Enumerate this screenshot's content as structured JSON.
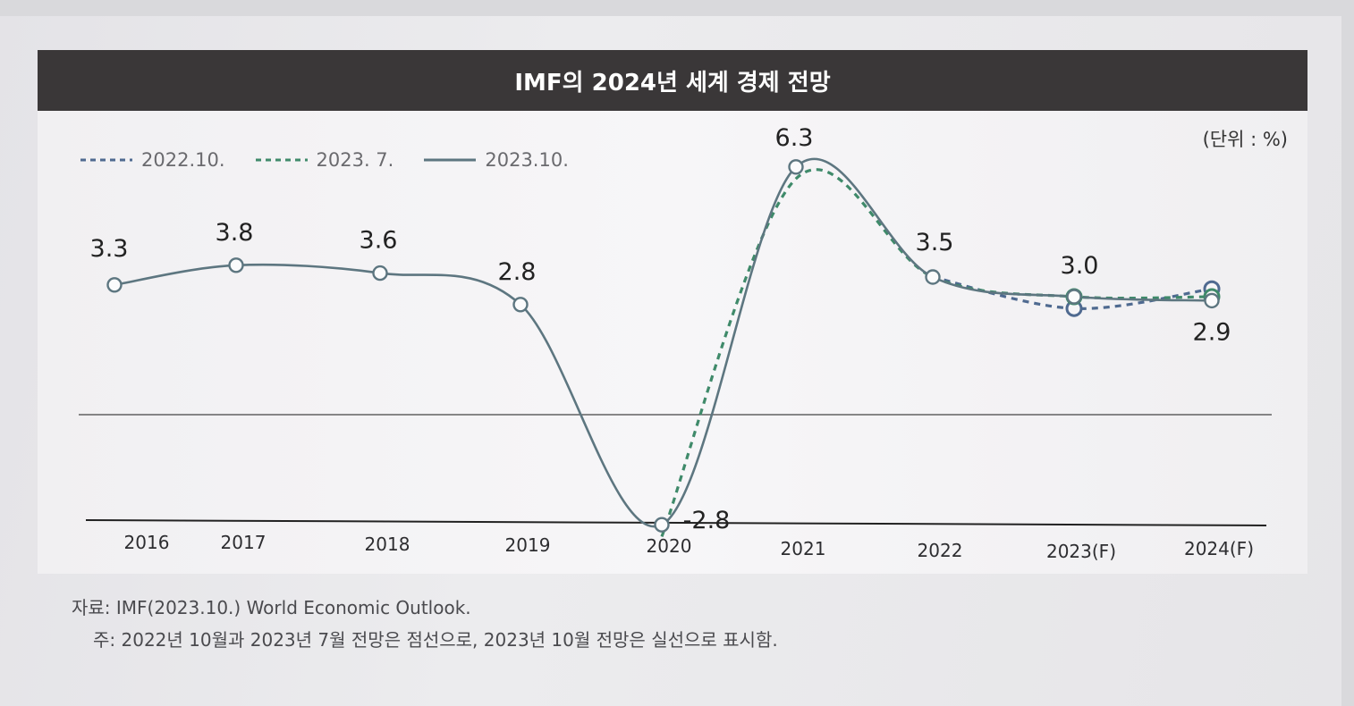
{
  "title": "IMF의 2024년 세계 경제 전망",
  "unit": "(단위 : %)",
  "legend": [
    {
      "label": "2022.10.",
      "color": "#4f6a90",
      "style": "dashed"
    },
    {
      "label": "2023. 7.",
      "color": "#3f8a6a",
      "style": "dashed"
    },
    {
      "label": "2023.10.",
      "color": "#5d7680",
      "style": "solid"
    }
  ],
  "chart_data": {
    "type": "line",
    "categories": [
      "2016",
      "2017",
      "2018",
      "2019",
      "2020",
      "2021",
      "2022",
      "2023(F)",
      "2024(F)"
    ],
    "series": [
      {
        "name": "2023.10.",
        "values": [
          3.3,
          3.8,
          3.6,
          2.8,
          -2.8,
          6.3,
          3.5,
          3.0,
          2.9
        ]
      },
      {
        "name": "2022.10.",
        "values": [
          null,
          null,
          null,
          null,
          null,
          null,
          3.5,
          2.7,
          3.2
        ]
      },
      {
        "name": "2023. 7.",
        "values": [
          null,
          null,
          null,
          null,
          -3.1,
          6.0,
          3.5,
          3.0,
          3.0
        ]
      }
    ],
    "data_labels": [
      "3.3",
      "3.8",
      "3.6",
      "2.8",
      "-2.8",
      "6.3",
      "3.5",
      "3.0",
      "2.9"
    ],
    "ylim": [
      -3.0,
      7.0
    ],
    "zero_line": true,
    "grid": false,
    "legend_position": "top-left"
  },
  "footnotes": {
    "source": "자료: IMF(2023.10.) World Economic Outlook.",
    "note": "주: 2022년 10월과 2023년 7월 전망은 점선으로, 2023년 10월 전망은 실선으로 표시함."
  }
}
